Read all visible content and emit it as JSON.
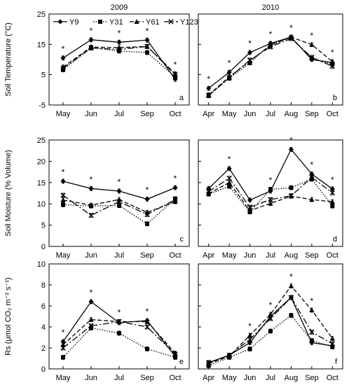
{
  "chart_data": {
    "type": "line",
    "years": [
      "2009",
      "2010"
    ],
    "legend": [
      "Y9",
      "Y31",
      "Y61",
      "Y123"
    ],
    "rows": [
      {
        "ylabel": "Soil Temperature (°C)",
        "ylim": [
          -5,
          25
        ],
        "yticks": [
          -5,
          5,
          15,
          25
        ],
        "panels": [
          {
            "label": "a",
            "categories": [
              "May",
              "Jun",
              "Jul",
              "Sep",
              "Oct"
            ],
            "series": [
              {
                "name": "Y9",
                "values": [
                  10.5,
                  16.5,
                  15.7,
                  16.4,
                  3.5
                ]
              },
              {
                "name": "Y31",
                "values": [
                  6.6,
                  13.9,
                  12.8,
                  12.3,
                  4.2
                ]
              },
              {
                "name": "Y61",
                "values": [
                  7.5,
                  14.1,
                  13.9,
                  14.3,
                  5.3
                ]
              },
              {
                "name": "Y123",
                "values": [
                  7.1,
                  13.8,
                  13.3,
                  14.3,
                  5.0
                ]
              }
            ],
            "stars": [
              "*",
              "*",
              "*",
              "*",
              "*"
            ]
          },
          {
            "label": "b",
            "categories": [
              "Apr",
              "May",
              "Jun",
              "Jul",
              "Aug",
              "Sep",
              "Oct"
            ],
            "series": [
              {
                "name": "Y9",
                "values": [
                  0.5,
                  5.8,
                  12.3,
                  15.3,
                  17.4,
                  10.0,
                  9.0
                ]
              },
              {
                "name": "Y31",
                "values": [
                  -1.8,
                  3.8,
                  8.9,
                  15.0,
                  17.2,
                  10.3,
                  8.5
                ]
              },
              {
                "name": "Y61",
                "values": [
                  -1.7,
                  4.3,
                  9.5,
                  14.7,
                  17.4,
                  14.9,
                  9.3
                ]
              },
              {
                "name": "Y123",
                "values": [
                  -1.9,
                  4.0,
                  9.8,
                  14.2,
                  16.9,
                  10.7,
                  7.8
                ]
              }
            ],
            "stars": [
              "*",
              "*",
              "*",
              "*",
              "*",
              "*",
              "*"
            ]
          }
        ]
      },
      {
        "ylabel": "Soil Moisture (% Volume)",
        "ylim": [
          0,
          25
        ],
        "yticks": [
          0,
          5,
          10,
          15,
          20,
          25
        ],
        "panels": [
          {
            "label": "c",
            "categories": [
              "May",
              "Jun",
              "Jul",
              "Sep",
              "Oct"
            ],
            "series": [
              {
                "name": "Y9",
                "values": [
                  15.3,
                  13.6,
                  13.0,
                  11.1,
                  13.8
                ]
              },
              {
                "name": "Y31",
                "values": [
                  9.8,
                  9.5,
                  9.6,
                  5.3,
                  11.2
                ]
              },
              {
                "name": "Y61",
                "values": [
                  10.9,
                  9.7,
                  11.0,
                  8.0,
                  10.5
                ]
              },
              {
                "name": "Y123",
                "values": [
                  12.0,
                  7.3,
                  10.5,
                  7.5,
                  11.0
                ]
              }
            ],
            "stars": [
              "*",
              "*",
              "*",
              "*",
              "*"
            ]
          },
          {
            "label": "d",
            "categories": [
              "Apr",
              "May",
              "Jun",
              "Jul",
              "Aug",
              "Sep",
              "Oct"
            ],
            "series": [
              {
                "name": "Y9",
                "values": [
                  13.6,
                  18.3,
                  10.9,
                  13.0,
                  22.8,
                  17.0,
                  13.5
                ]
              },
              {
                "name": "Y31",
                "values": [
                  12.3,
                  14.1,
                  8.1,
                  13.4,
                  13.8,
                  15.8,
                  9.5
                ]
              },
              {
                "name": "Y61",
                "values": [
                  12.4,
                  15.0,
                  8.4,
                  10.1,
                  11.8,
                  11.0,
                  10.5
                ]
              },
              {
                "name": "Y123",
                "values": [
                  12.9,
                  16.0,
                  9.2,
                  11.0,
                  11.9,
                  16.2,
                  12.6
                ]
              }
            ],
            "stars": [
              "",
              "*",
              "",
              "*",
              "*",
              "*",
              "*"
            ]
          }
        ]
      },
      {
        "ylabel": "Rs (μmol CO₂ m⁻² s⁻¹)",
        "ylim": [
          0,
          10
        ],
        "yticks": [
          0,
          2,
          4,
          6,
          8,
          10
        ],
        "panels": [
          {
            "label": "e",
            "categories": [
              "May",
              "Jun",
              "Jul",
              "Sep",
              "Oct"
            ],
            "series": [
              {
                "name": "Y9",
                "values": [
                  2.6,
                  6.4,
                  4.4,
                  4.6,
                  1.2
                ]
              },
              {
                "name": "Y31",
                "values": [
                  1.1,
                  3.9,
                  3.4,
                  1.9,
                  1.1
                ]
              },
              {
                "name": "Y61",
                "values": [
                  2.3,
                  4.7,
                  4.5,
                  4.5,
                  1.5
                ]
              },
              {
                "name": "Y123",
                "values": [
                  2.0,
                  4.1,
                  4.5,
                  4.0,
                  1.4
                ]
              }
            ],
            "stars": [
              "*",
              "*",
              "*",
              "*",
              ""
            ]
          },
          {
            "label": "f",
            "categories": [
              "Apr",
              "May",
              "Jun",
              "Jul",
              "Aug",
              "Sep",
              "Oct"
            ],
            "series": [
              {
                "name": "Y9",
                "values": [
                  0.6,
                  1.3,
                  2.5,
                  5.0,
                  6.8,
                  2.5,
                  2.2
                ]
              },
              {
                "name": "Y31",
                "values": [
                  0.3,
                  1.1,
                  1.9,
                  3.6,
                  5.1,
                  2.7,
                  2.1
                ]
              },
              {
                "name": "Y61",
                "values": [
                  0.5,
                  1.2,
                  3.2,
                  5.2,
                  7.9,
                  5.6,
                  2.9
                ]
              },
              {
                "name": "Y123",
                "values": [
                  0.6,
                  1.3,
                  2.8,
                  4.8,
                  6.8,
                  3.5,
                  2.4
                ]
              }
            ],
            "stars": [
              "",
              "",
              "*",
              "*",
              "*",
              "*",
              ""
            ]
          }
        ]
      }
    ]
  }
}
